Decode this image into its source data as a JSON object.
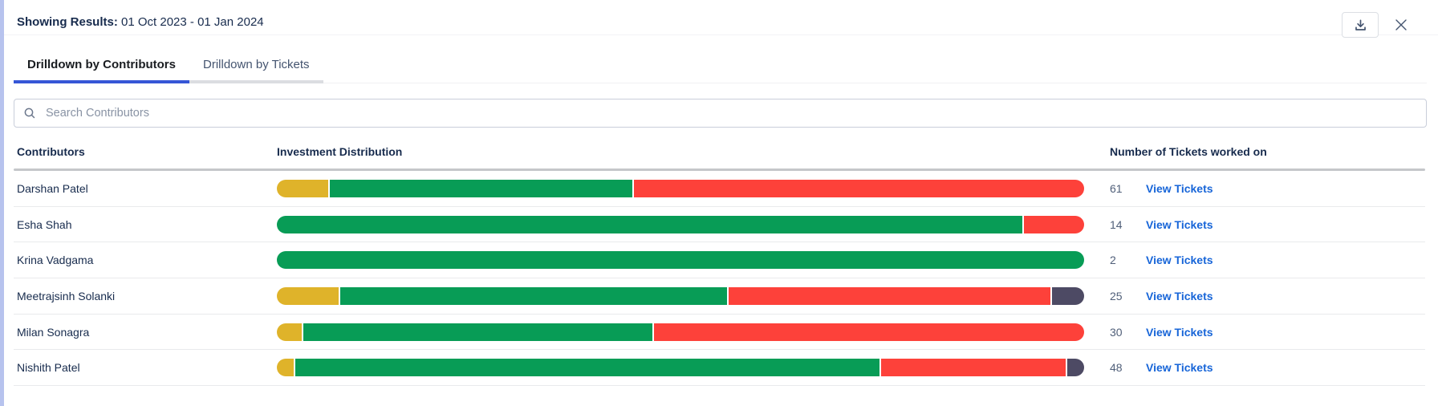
{
  "panel": {
    "title_label": "Showing Results:",
    "title_value": "01 Oct 2023 - 01 Jan 2024"
  },
  "tabs": [
    {
      "label": "Drilldown by Contributors",
      "active": true
    },
    {
      "label": "Drilldown by Tickets",
      "active": false
    }
  ],
  "search": {
    "placeholder": "Search Contributors"
  },
  "table": {
    "columns": [
      "Contributors",
      "Investment Distribution",
      "Number of Tickets worked on"
    ],
    "link_label": "View Tickets",
    "rows": [
      {
        "name": "Darshan Patel",
        "tickets": "61",
        "segments": [
          {
            "color": "yellow",
            "pct": 6.4
          },
          {
            "color": "green",
            "pct": 37.6
          },
          {
            "color": "red",
            "pct": 56.0
          }
        ]
      },
      {
        "name": "Esha Shah",
        "tickets": "14",
        "segments": [
          {
            "color": "green",
            "pct": 92.5
          },
          {
            "color": "red",
            "pct": 7.5
          }
        ]
      },
      {
        "name": "Krina Vadgama",
        "tickets": "2",
        "segments": [
          {
            "color": "green",
            "pct": 100
          }
        ]
      },
      {
        "name": "Meetrajsinh Solanki",
        "tickets": "25",
        "segments": [
          {
            "color": "yellow",
            "pct": 7.7
          },
          {
            "color": "green",
            "pct": 48.2
          },
          {
            "color": "red",
            "pct": 40.1
          },
          {
            "color": "dark",
            "pct": 4.0
          }
        ]
      },
      {
        "name": "Milan Sonagra",
        "tickets": "30",
        "segments": [
          {
            "color": "yellow",
            "pct": 3.1
          },
          {
            "color": "green",
            "pct": 43.4
          },
          {
            "color": "red",
            "pct": 53.5
          }
        ]
      },
      {
        "name": "Nishith Patel",
        "tickets": "48",
        "segments": [
          {
            "color": "yellow",
            "pct": 2.1
          },
          {
            "color": "green",
            "pct": 72.8
          },
          {
            "color": "red",
            "pct": 23.0
          },
          {
            "color": "dark",
            "pct": 2.1
          }
        ]
      }
    ]
  },
  "colors": {
    "yellow": "#DFB32A",
    "green": "#089C56",
    "red": "#FD413A",
    "dark": "#4D4A64",
    "accent": "#3656D6",
    "link": "#1765D8",
    "left_border": "#B7C3EE"
  }
}
